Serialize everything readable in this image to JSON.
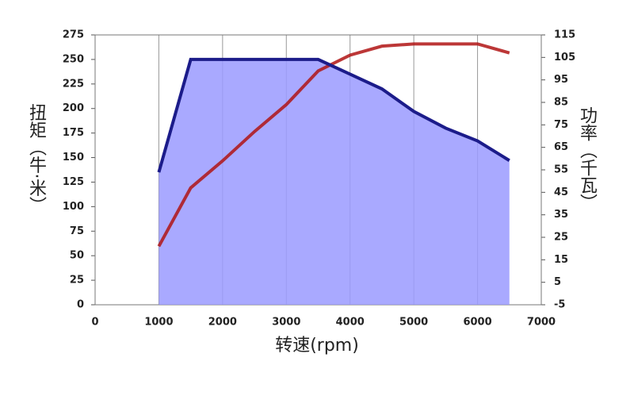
{
  "chart_data": {
    "type": "line",
    "x_label": "转速(rpm)",
    "y_label": "扭矩（牛·米）",
    "y2_label": "功率（千瓦）",
    "xlim": [
      0,
      7000
    ],
    "xticks": [
      0,
      1000,
      2000,
      3000,
      4000,
      5000,
      6000,
      7000
    ],
    "ylim": [
      0,
      275
    ],
    "yticks": [
      0,
      25,
      50,
      75,
      100,
      125,
      150,
      175,
      200,
      225,
      250,
      275
    ],
    "y2lim": [
      -5,
      115
    ],
    "y2ticks": [
      -5,
      5,
      15,
      25,
      35,
      45,
      55,
      65,
      75,
      85,
      95,
      105,
      115
    ],
    "grid": "x",
    "series": [
      {
        "name": "扭矩",
        "color": "#1c1c8a",
        "fill": "#9a9aff",
        "axis": "y",
        "x": [
          1000,
          1500,
          3500,
          4000,
          4500,
          5000,
          5500,
          6000,
          6500
        ],
        "values": [
          135,
          250,
          250,
          235,
          220,
          197,
          180,
          167,
          147
        ]
      },
      {
        "name": "功率",
        "color": "#b01414",
        "axis": "y2",
        "x": [
          1000,
          1500,
          2000,
          2500,
          3000,
          3500,
          4000,
          4500,
          5000,
          6000,
          6500
        ],
        "values": [
          21,
          47,
          59,
          72,
          84,
          99,
          106,
          110,
          111,
          111,
          107
        ]
      }
    ]
  }
}
